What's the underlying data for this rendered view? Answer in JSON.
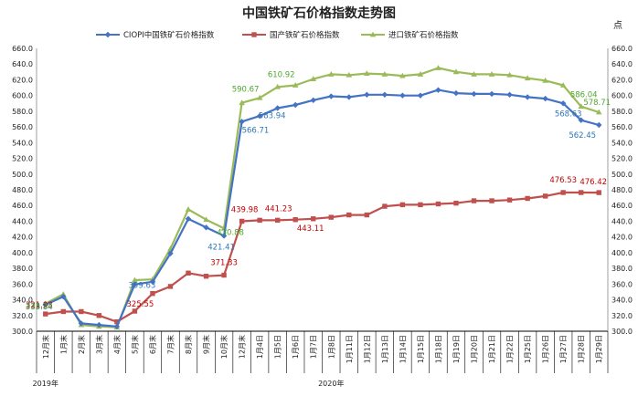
{
  "chart_data": {
    "type": "line",
    "title": "中国铁矿石价格指数走势图",
    "right_axis_unit": "点",
    "ylim": [
      300,
      660
    ],
    "yticks": [
      "300.0",
      "320.0",
      "340.0",
      "360.0",
      "380.0",
      "400.0",
      "420.0",
      "440.0",
      "460.0",
      "480.0",
      "500.0",
      "520.0",
      "540.0",
      "560.0",
      "580.0",
      "600.0",
      "620.0",
      "640.0",
      "660.0"
    ],
    "grid": false,
    "legend_position": "top",
    "categories": [
      "12月末",
      "1月末",
      "2月末",
      "3月末",
      "4月末",
      "5月末",
      "6月末",
      "7月末",
      "8月末",
      "9月末",
      "10月末",
      "12月末",
      "1月4日",
      "1月5日",
      "1月6日",
      "1月7日",
      "1月8日",
      "1月11日",
      "1月12日",
      "1月13日",
      "1月14日",
      "1月15日",
      "1月18日",
      "1月19日",
      "1月20日",
      "1月21日",
      "1月22日",
      "1月25日",
      "1月26日",
      "1月27日",
      "1月28日",
      "1月29日"
    ],
    "year_labels": [
      {
        "text": "2019年",
        "index": 0
      },
      {
        "text": "2020年",
        "index": 16
      }
    ],
    "series": [
      {
        "name": "CIOPI中国铁矿石价格指数",
        "color": "#4472C4",
        "marker": "diamond",
        "values": [
          333.84,
          344.0,
          310.0,
          308.0,
          306.0,
          359.63,
          363.0,
          399.0,
          443.0,
          432.0,
          421.41,
          566.71,
          574.0,
          583.94,
          588.0,
          594.0,
          599.0,
          598.0,
          601.0,
          601.0,
          600.0,
          600.0,
          607.0,
          603.0,
          602.0,
          602.0,
          601.0,
          598.0,
          596.0,
          590.0,
          568.63,
          562.45
        ]
      },
      {
        "name": "国产铁矿石价格指数",
        "color": "#C0504D",
        "marker": "square",
        "values": [
          321.93,
          325.0,
          325.0,
          320.0,
          312.0,
          325.55,
          348.0,
          357.0,
          374.0,
          370.0,
          371.33,
          439.98,
          441.23,
          441.23,
          442.0,
          443.11,
          445.0,
          448.0,
          448.0,
          459.0,
          461.0,
          461.0,
          462.0,
          463.0,
          466.0,
          466.0,
          467.0,
          469.0,
          472.0,
          476.53,
          476.5,
          476.42
        ]
      },
      {
        "name": "进口铁矿石价格指数",
        "color": "#9BBB59",
        "marker": "triangle",
        "values": [
          335.24,
          347.0,
          308.0,
          306.0,
          305.0,
          365.0,
          366.0,
          405.0,
          455.0,
          442.0,
          430.88,
          590.67,
          597.0,
          610.92,
          613.0,
          621.0,
          627.0,
          626.0,
          628.0,
          627.0,
          625.0,
          627.0,
          635.0,
          630.0,
          627.0,
          627.0,
          626.0,
          622.0,
          619.0,
          613.0,
          586.04,
          578.71
        ]
      }
    ],
    "data_labels": [
      {
        "series": 0,
        "index": 0,
        "text": "333.84"
      },
      {
        "series": 0,
        "index": 5,
        "text": "359.63"
      },
      {
        "series": 0,
        "index": 10,
        "text": "421.41"
      },
      {
        "series": 0,
        "index": 11,
        "text": "566.71"
      },
      {
        "series": 0,
        "index": 13,
        "text": "583.94"
      },
      {
        "series": 0,
        "index": 30,
        "text": "568.63"
      },
      {
        "series": 0,
        "index": 31,
        "text": "562.45"
      },
      {
        "series": 1,
        "index": 0,
        "text": "321.93"
      },
      {
        "series": 1,
        "index": 5,
        "text": "325.55"
      },
      {
        "series": 1,
        "index": 10,
        "text": "371.33"
      },
      {
        "series": 1,
        "index": 11,
        "text": "439.98"
      },
      {
        "series": 1,
        "index": 13,
        "text": "441.23"
      },
      {
        "series": 1,
        "index": 15,
        "text": "443.11"
      },
      {
        "series": 1,
        "index": 29,
        "text": "476.53"
      },
      {
        "series": 1,
        "index": 31,
        "text": "476.42"
      },
      {
        "series": 2,
        "index": 0,
        "text": "335.24"
      },
      {
        "series": 2,
        "index": 10,
        "text": "430.88"
      },
      {
        "series": 2,
        "index": 11,
        "text": "590.67"
      },
      {
        "series": 2,
        "index": 13,
        "text": "610.92"
      },
      {
        "series": 2,
        "index": 30,
        "text": "586.04"
      },
      {
        "series": 2,
        "index": 31,
        "text": "578.71"
      }
    ]
  }
}
